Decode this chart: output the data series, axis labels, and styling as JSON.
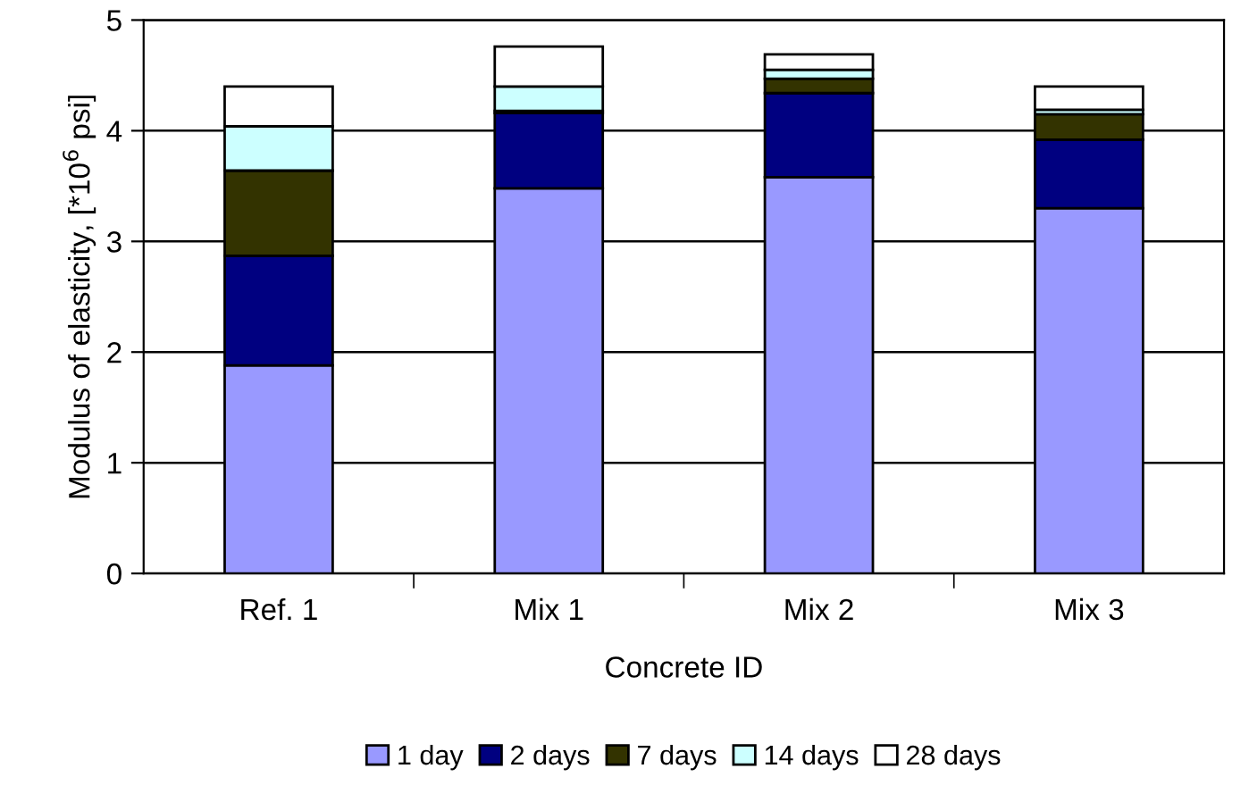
{
  "chart_data": {
    "type": "bar",
    "stacked": true,
    "xlabel": "Concrete ID",
    "ylabel": "Modulus of elasticity, [*10$^{6}$ psi]",
    "categories": [
      "Ref. 1",
      "Mix 1",
      "Mix 2",
      "Mix 3"
    ],
    "series": [
      {
        "name": "1 day",
        "color": "#9999ff",
        "values": [
          1.88,
          3.48,
          3.58,
          3.3
        ]
      },
      {
        "name": "2 days",
        "color": "#000080",
        "values": [
          0.99,
          0.68,
          0.76,
          0.62
        ]
      },
      {
        "name": "7 days",
        "color": "#333300",
        "values": [
          0.77,
          0.02,
          0.13,
          0.23
        ]
      },
      {
        "name": "14 days",
        "color": "#ccffff",
        "values": [
          0.4,
          0.22,
          0.08,
          0.04
        ]
      },
      {
        "name": "28 days",
        "color": "#ffffff",
        "values": [
          0.36,
          0.36,
          0.14,
          0.21
        ]
      }
    ],
    "ylim": [
      0,
      5
    ],
    "yticks": [
      0,
      1,
      2,
      3,
      4,
      5
    ],
    "grid": "y",
    "legend": "bottom"
  }
}
